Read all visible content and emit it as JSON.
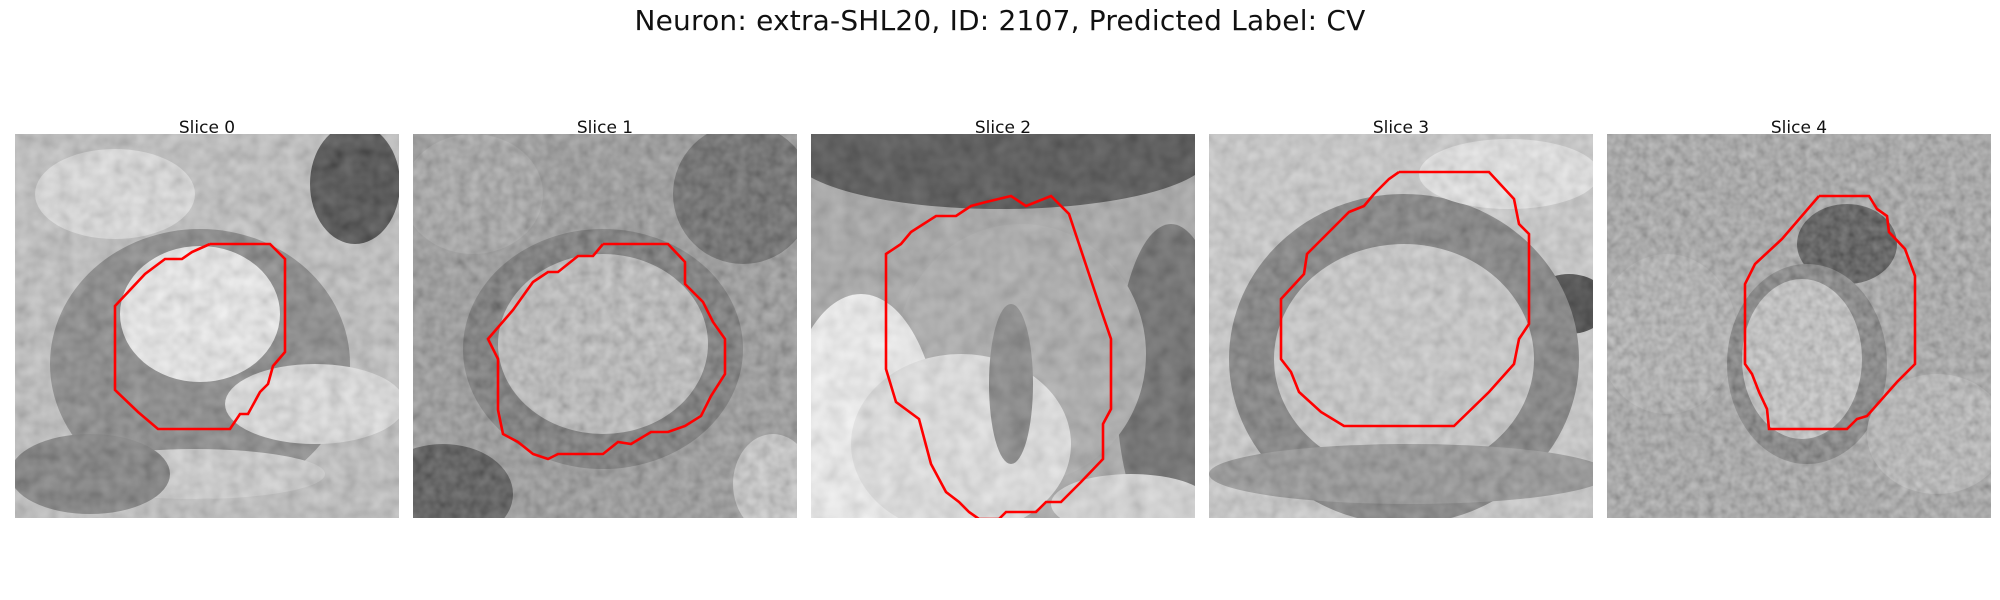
{
  "title": "Neuron: extra-SHL20, ID: 2107, Predicted Label: CV",
  "contour_color": "#ff0000",
  "panels": [
    {
      "label": "Slice 0"
    },
    {
      "label": "Slice 1"
    },
    {
      "label": "Slice 2"
    },
    {
      "label": "Slice 3"
    },
    {
      "label": "Slice 4"
    }
  ]
}
